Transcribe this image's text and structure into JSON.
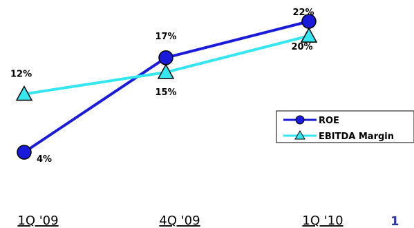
{
  "chart_data": {
    "type": "line",
    "categories": [
      "1Q '09",
      "4Q '09",
      "1Q '10"
    ],
    "series": [
      {
        "name": "ROE",
        "values": [
          4,
          17,
          22
        ],
        "labels": [
          "4%",
          "17%",
          "22%"
        ],
        "color": "#1a1adb",
        "marker": "circle"
      },
      {
        "name": "EBITDA Margin",
        "values": [
          12,
          15,
          20
        ],
        "labels": [
          "12%",
          "15%",
          "20%"
        ],
        "color": "#33e6f0",
        "marker": "triangle"
      }
    ],
    "ylim": [
      0,
      25
    ],
    "grid": false,
    "legend": "right"
  },
  "page_number": "1"
}
